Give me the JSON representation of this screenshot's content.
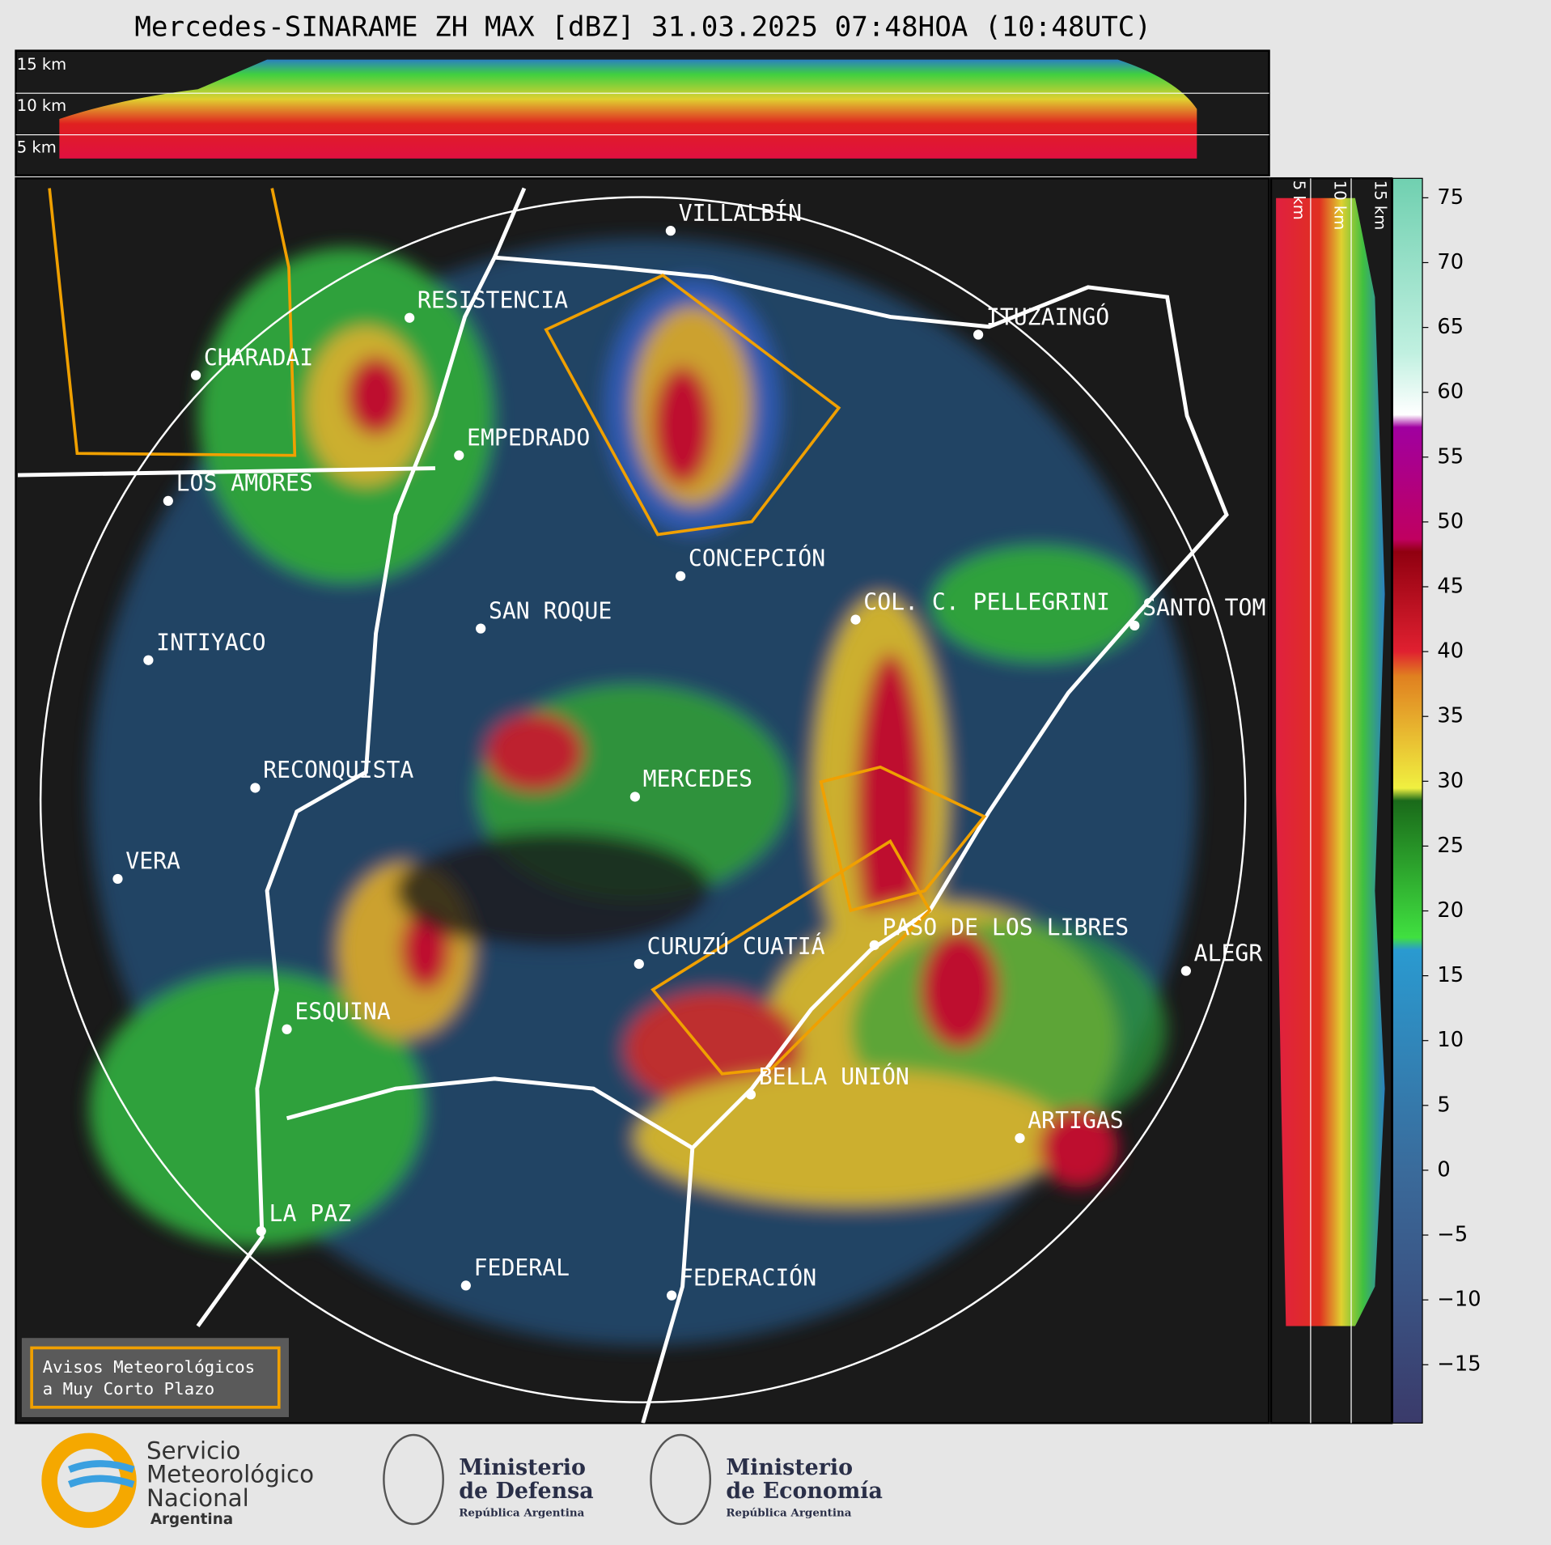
{
  "title": "Mercedes-SINARAME ZH MAX [dBZ] 31.03.2025 07:48HOA (10:48UTC)",
  "top_section": {
    "heights": [
      "15 km",
      "10 km",
      "5 km"
    ]
  },
  "side_section": {
    "heights": [
      "5 km",
      "10 km",
      "15 km"
    ]
  },
  "cities": [
    "VILLALBÍN",
    "RESISTENCIA",
    "CHARADAI",
    "EMPEDRADO",
    "LOS AMORES",
    "ITUZAINGÓ",
    "CONCEPCIÓN",
    "SAN ROQUE",
    "COL. C. PELLEGRINI",
    "SANTO TOM",
    "INTIYACO",
    "MERCEDES",
    "RECONQUISTA",
    "VERA",
    "PASO DE LOS LIBRES",
    "CURUZÚ CUATIÁ",
    "ALEGR",
    "ESQUINA",
    "BELLA UNIÓN",
    "ARTIGAS",
    "LA PAZ",
    "FEDERAL",
    "FEDERACIÓN"
  ],
  "notice": [
    "Avisos Meteorológicos",
    "a Muy Corto Plazo"
  ],
  "colorbar": {
    "ylim": [
      -19.5,
      76.5
    ],
    "yticks": [
      75,
      70,
      65,
      60,
      55,
      50,
      45,
      40,
      35,
      30,
      25,
      20,
      15,
      10,
      5,
      0,
      {
        "value": -5,
        "label": "−5"
      },
      {
        "value": -10,
        "label": "−10"
      },
      {
        "value": -15,
        "label": "−15"
      }
    ]
  },
  "footer": {
    "smn": [
      "Servicio",
      "Meteorológico",
      "Nacional",
      "Argentina"
    ],
    "defensa": [
      "Ministerio",
      "de Defensa",
      "República Argentina"
    ],
    "economia": [
      "Ministerio",
      "de Economía",
      "República Argentina"
    ]
  }
}
